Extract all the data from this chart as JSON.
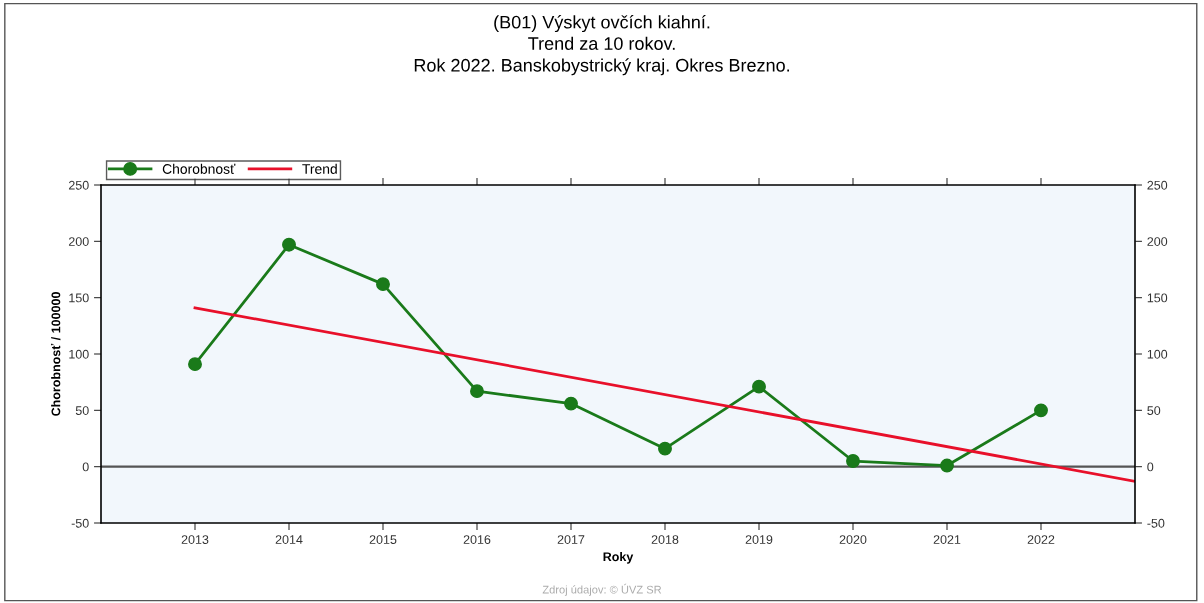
{
  "chart_data": {
    "type": "line",
    "title": "(B01) Výskyt ovčích kiahní.\nTrend za 10 rokov.\nRok 2022. Banskobystrický kraj. Okres Brezno.",
    "xlabel": "Roky",
    "ylabel": "Chorobnosť / 100000",
    "x": [
      2013,
      2014,
      2015,
      2016,
      2017,
      2018,
      2019,
      2020,
      2021,
      2022
    ],
    "series": [
      {
        "name": "Chorobnosť",
        "color": "#1a7a1a",
        "values": [
          91,
          197,
          162,
          67,
          56,
          16,
          71,
          5,
          1,
          50
        ],
        "marker": "circle"
      },
      {
        "name": "Trend",
        "color": "#e8102a",
        "type": "line",
        "x": [
          2013,
          2023
        ],
        "values": [
          141,
          -13
        ],
        "marker": "none"
      }
    ],
    "xlim": [
      2012,
      2023
    ],
    "xticks": [
      2013,
      2014,
      2015,
      2016,
      2017,
      2018,
      2019,
      2020,
      2021,
      2022
    ],
    "ylim": [
      -50,
      250
    ],
    "yticks": [
      -50,
      0,
      50,
      100,
      150,
      200,
      250
    ],
    "y2lim": [
      -50,
      250
    ],
    "y2ticks": [
      -50,
      0,
      50,
      100,
      150,
      200,
      250
    ],
    "ref_lines": [
      {
        "axis": "y",
        "value": 0,
        "color": "#555555"
      }
    ],
    "grid": false,
    "legend": "top left",
    "line_style": "solid",
    "annotations": [
      "Zdroj údajov: © ÚVZ SR"
    ]
  }
}
